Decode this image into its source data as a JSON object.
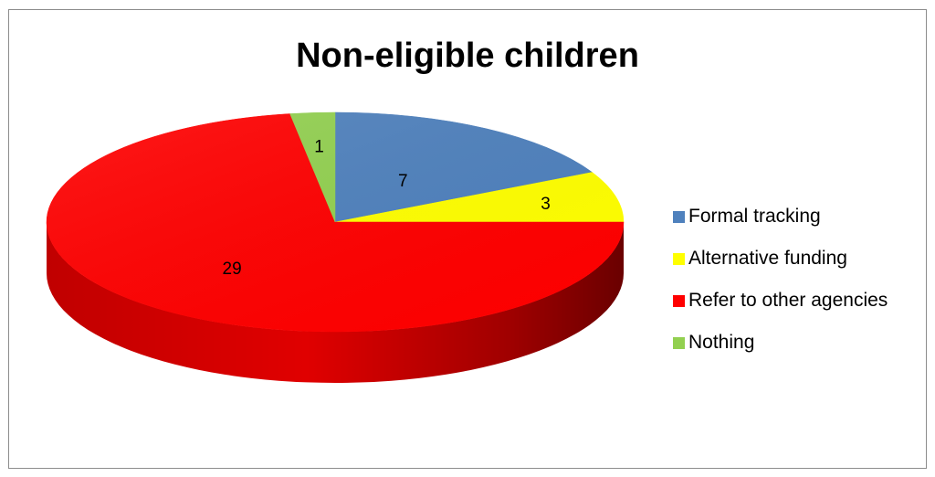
{
  "chart_data": {
    "type": "pie",
    "title": "Non-eligible children",
    "labels": [
      "Formal tracking",
      "Alternative funding",
      "Refer to other agencies",
      "Nothing"
    ],
    "values": [
      7,
      3,
      29,
      1
    ],
    "colors": [
      "#4f81bd",
      "#ffff00",
      "#ff0000",
      "#92d050"
    ],
    "data_labels": [
      "7",
      "3",
      "29",
      "1"
    ],
    "legend_position": "right",
    "style": "3d"
  }
}
